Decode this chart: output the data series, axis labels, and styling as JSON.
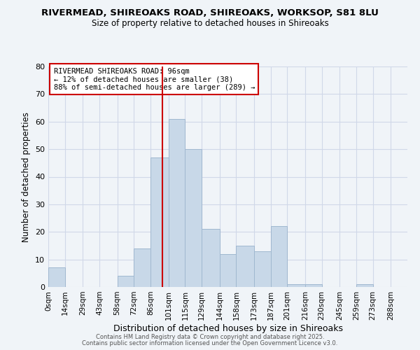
{
  "title": "RIVERMEAD, SHIREOAKS ROAD, SHIREOAKS, WORKSOP, S81 8LU",
  "subtitle": "Size of property relative to detached houses in Shireoaks",
  "xlabel": "Distribution of detached houses by size in Shireoaks",
  "ylabel": "Number of detached properties",
  "bin_labels": [
    "0sqm",
    "14sqm",
    "29sqm",
    "43sqm",
    "58sqm",
    "72sqm",
    "86sqm",
    "101sqm",
    "115sqm",
    "129sqm",
    "144sqm",
    "158sqm",
    "173sqm",
    "187sqm",
    "201sqm",
    "216sqm",
    "230sqm",
    "245sqm",
    "259sqm",
    "273sqm",
    "288sqm"
  ],
  "bar_heights": [
    7,
    0,
    0,
    0,
    4,
    14,
    47,
    61,
    50,
    21,
    12,
    15,
    13,
    22,
    1,
    1,
    0,
    0,
    1,
    0,
    0
  ],
  "bar_color": "#c8d8e8",
  "bar_edge_color": "#a0b8d0",
  "grid_color": "#d0d8e8",
  "background_color": "#f0f4f8",
  "vline_x": 96,
  "vline_color": "#cc0000",
  "annotation_text": "RIVERMEAD SHIREOAKS ROAD: 96sqm\n← 12% of detached houses are smaller (38)\n88% of semi-detached houses are larger (289) →",
  "annotation_box_edgecolor": "#cc0000",
  "ylim": [
    0,
    80
  ],
  "yticks": [
    0,
    10,
    20,
    30,
    40,
    50,
    60,
    70,
    80
  ],
  "footer1": "Contains HM Land Registry data © Crown copyright and database right 2025.",
  "footer2": "Contains public sector information licensed under the Open Government Licence v3.0.",
  "bin_edges": [
    0,
    14,
    29,
    43,
    58,
    72,
    86,
    101,
    115,
    129,
    144,
    158,
    173,
    187,
    201,
    216,
    230,
    245,
    259,
    273,
    288,
    302
  ]
}
